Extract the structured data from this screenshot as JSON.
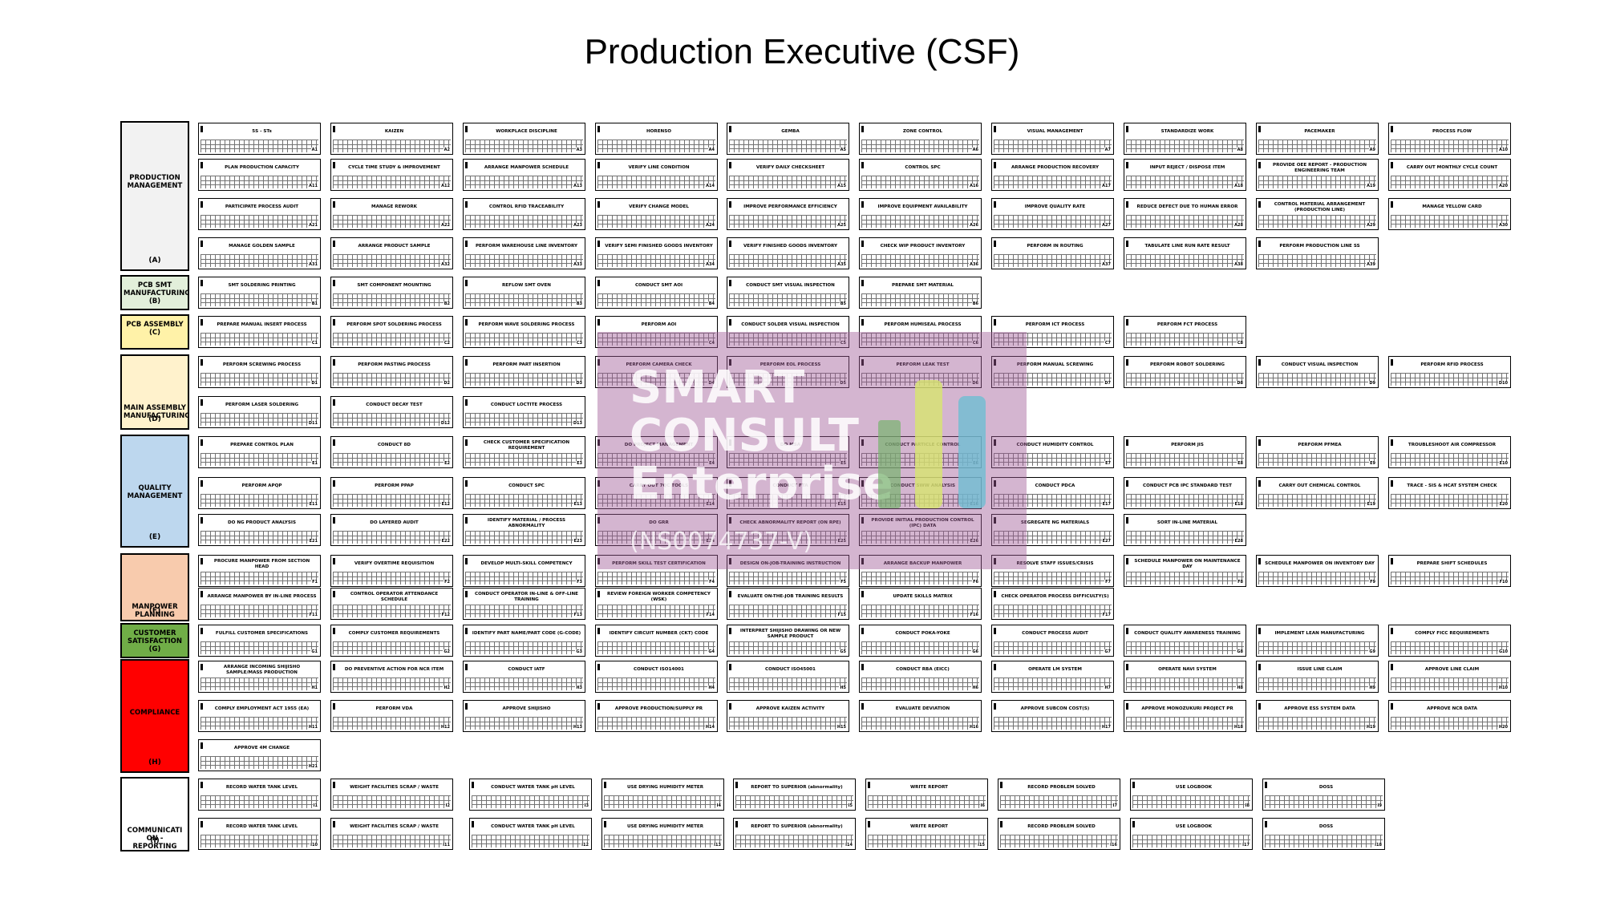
{
  "title": "Production Executive (CSF)",
  "watermark": {
    "text": "SMART\nCONSULT\nEnterprise",
    "subtext": "(NS0074737-V)"
  },
  "colors": {
    "A": "#f2f2f2",
    "B": "#e2efda",
    "C": "#fff2a8",
    "D": "#fff2cc",
    "E": "#bdd7ee",
    "F": "#f8cbad",
    "G": "#70ad47",
    "H": "#ff0000",
    "I": "#ffffff"
  },
  "categories": [
    {
      "key": "A",
      "name": "PRODUCTION\nMANAGEMENT",
      "code": "(A)"
    },
    {
      "key": "B",
      "name": "PCB SMT\nMANUFACTURING\n(B)",
      "code": ""
    },
    {
      "key": "C",
      "name": "PCB ASSEMBLY\n(C)",
      "code": ""
    },
    {
      "key": "D",
      "name": "MAIN ASSEMBLY\nMANUFACTURING",
      "code": "(D)"
    },
    {
      "key": "E",
      "name": "QUALITY\nMANAGEMENT",
      "code": "(E)"
    },
    {
      "key": "F",
      "name": "MANPOWER\nPLANNING",
      "code": "(F)"
    },
    {
      "key": "G",
      "name": "CUSTOMER\nSATISFACTION\n(G)",
      "code": ""
    },
    {
      "key": "H",
      "name": "COMPLIANCE",
      "code": "(H)"
    },
    {
      "key": "I",
      "name": "COMMUNICATI\nON -\nREPORTING",
      "code": "(I)"
    }
  ],
  "rows": [
    {
      "cat": "A",
      "items": [
        [
          "5S - STs",
          "A1"
        ],
        [
          "KAIZEN",
          "A2"
        ],
        [
          "WORKPLACE DISCIPLINE",
          "A3"
        ],
        [
          "HORENSO",
          "A4"
        ],
        [
          "GEMBA",
          "A5"
        ],
        [
          "ZONE CONTROL",
          "A6"
        ],
        [
          "VISUAL MANAGEMENT",
          "A7"
        ],
        [
          "STANDARDIZE WORK",
          "A8"
        ],
        [
          "PACEMAKER",
          "A9"
        ],
        [
          "PROCESS FLOW",
          "A10"
        ]
      ]
    },
    {
      "cat": "A",
      "items": [
        [
          "PLAN PRODUCTION CAPACITY",
          "A11"
        ],
        [
          "CYCLE TIME STUDY & IMPROVEMENT",
          "A12"
        ],
        [
          "ARRANGE MANPOWER SCHEDULE",
          "A13"
        ],
        [
          "VERIFY LINE CONDITION",
          "A14"
        ],
        [
          "VERIFY DAILY CHECKSHEET",
          "A15"
        ],
        [
          "CONTROL SPC",
          "A16"
        ],
        [
          "ARRANGE PRODUCTION RECOVERY",
          "A17"
        ],
        [
          "INPUT REJECT / DISPOSE ITEM",
          "A18"
        ],
        [
          "PROVIDE OEE REPORT - PRODUCTION ENGINEERING TEAM",
          "A19"
        ],
        [
          "CARRY OUT MONTHLY CYCLE COUNT",
          "A20"
        ]
      ]
    },
    {
      "cat": "A",
      "items": [
        [
          "PARTICIPATE PROCESS AUDIT",
          "A21"
        ],
        [
          "MANAGE REWORK",
          "A22"
        ],
        [
          "CONTROL RFID TRACEABILITY",
          "A23"
        ],
        [
          "VERIFY CHANGE MODEL",
          "A24"
        ],
        [
          "IMPROVE PERFORMANCE EFFICIENCY",
          "A25"
        ],
        [
          "IMPROVE EQUIPMENT AVAILABILITY",
          "A26"
        ],
        [
          "IMPROVE QUALITY RATE",
          "A27"
        ],
        [
          "REDUCE DEFECT DUE TO HUMAN ERROR",
          "A28"
        ],
        [
          "CONTROL MATERIAL ARRANGEMENT (PRODUCTION LINE)",
          "A29"
        ],
        [
          "MANAGE YELLOW CARD",
          "A30"
        ]
      ]
    },
    {
      "cat": "A",
      "items": [
        [
          "MANAGE GOLDEN SAMPLE",
          "A31"
        ],
        [
          "ARRANGE PRODUCT SAMPLE",
          "A32"
        ],
        [
          "PERFORM WAREHOUSE LINE INVENTORY",
          "A33"
        ],
        [
          "VERIFY SEMI FINISHED GOODS INVENTORY",
          "A34"
        ],
        [
          "VERIFY FINISHED GOODS INVENTORY",
          "A35"
        ],
        [
          "CHECK WIP PRODUCT INVENTORY",
          "A36"
        ],
        [
          "PERFORM IN ROUTING",
          "A37"
        ],
        [
          "TABULATE LINE RUN RATE RESULT",
          "A38"
        ],
        [
          "PERFORM PRODUCTION LINE SS",
          "A39"
        ]
      ]
    },
    {
      "cat": "B",
      "items": [
        [
          "SMT SOLDERING PRINTING",
          "B1"
        ],
        [
          "SMT COMPONENT MOUNTING",
          "B2"
        ],
        [
          "REFLOW SMT OVEN",
          "B3"
        ],
        [
          "CONDUCT SMT AOI",
          "B4"
        ],
        [
          "CONDUCT SMT VISUAL INSPECTION",
          "B5"
        ],
        [
          "PREPARE SMT MATERIAL",
          "B6"
        ]
      ]
    },
    {
      "cat": "C",
      "items": [
        [
          "PREPARE MANUAL INSERT PROCESS",
          "C1"
        ],
        [
          "PERFORM SPOT SOLDERING PROCESS",
          "C2"
        ],
        [
          "PERFORM WAVE SOLDERING PROCESS",
          "C3"
        ],
        [
          "PERFORM AOI",
          "C4"
        ],
        [
          "CONDUCT SOLDER VISUAL INSPECTION",
          "C5"
        ],
        [
          "PERFORM HUMISEAL PROCESS",
          "C6"
        ],
        [
          "PERFORM ICT PROCESS",
          "C7"
        ],
        [
          "PERFORM FCT PROCESS",
          "C8"
        ]
      ]
    },
    {
      "cat": "D",
      "items": [
        [
          "PERFORM SCREWING PROCESS",
          "D1"
        ],
        [
          "PERFORM PASTING PROCESS",
          "D2"
        ],
        [
          "PERFORM PART INSERTION",
          "D3"
        ],
        [
          "PERFORM CAMERA CHECK",
          "D4"
        ],
        [
          "PERFORM EOL PROCESS",
          "D5"
        ],
        [
          "PERFORM LEAK TEST",
          "D6"
        ],
        [
          "PERFORM MANUAL SCREWING",
          "D7"
        ],
        [
          "PERFORM ROBOT SOLDERING",
          "D8"
        ],
        [
          "CONDUCT VISUAL INSPECTION",
          "D9"
        ],
        [
          "PERFORM RFID PROCESS",
          "D10"
        ]
      ]
    },
    {
      "cat": "D",
      "items": [
        [
          "PERFORM LASER SOLDERING",
          "D11"
        ],
        [
          "CONDUCT DECAY TEST",
          "D12"
        ],
        [
          "CONDUCT LOCTITE PROCESS",
          "D13"
        ]
      ]
    },
    {
      "cat": "E",
      "items": [
        [
          "PREPARE CONTROL PLAN",
          "E1"
        ],
        [
          "CONDUCT 8D",
          "E2"
        ],
        [
          "CHECK CUSTOMER SPECIFICATION REQUIREMENT",
          "E3"
        ],
        [
          "DO PROJECT MANAGEMENT",
          "E4"
        ],
        [
          "DO MSA",
          "E5"
        ],
        [
          "CONDUCT PARTICLE CONTROL",
          "E6"
        ],
        [
          "CONDUCT HUMIDITY CONTROL",
          "E7"
        ],
        [
          "PERFORM JIS",
          "E8"
        ],
        [
          "PERFORM PFMEA",
          "E9"
        ],
        [
          "TROUBLESHOOT AIR COMPRESSOR",
          "E10"
        ]
      ]
    },
    {
      "cat": "E",
      "items": [
        [
          "PERFORM APQP",
          "E11"
        ],
        [
          "PERFORM PPAP",
          "E12"
        ],
        [
          "CONDUCT SPC",
          "E13"
        ],
        [
          "CARRY OUT 7QC TOOLS",
          "E14"
        ],
        [
          "CONDUCT FTA",
          "E15"
        ],
        [
          "CONDUCT SWW ANALYSIS",
          "E16"
        ],
        [
          "CONDUCT PDCA",
          "E17"
        ],
        [
          "CONDUCT PCB IPC STANDARD TEST",
          "E18"
        ],
        [
          "CARRY OUT CHEMICAL CONTROL",
          "E19"
        ],
        [
          "TRACE - SIS & HCAT SYSTEM CHECK",
          "E20"
        ]
      ]
    },
    {
      "cat": "E",
      "items": [
        [
          "DO NG PRODUCT ANALYSIS",
          "E21"
        ],
        [
          "DO LAYERED AUDIT",
          "E22"
        ],
        [
          "IDENTIFY MATERIAL / PROCESS ABNORMALITY",
          "E23"
        ],
        [
          "DO GRR",
          "E24"
        ],
        [
          "CHECK ABNORMALITY REPORT (ON RPE)",
          "E25"
        ],
        [
          "PROVIDE INITIAL PRODUCTION CONTROL (IPC) DATA",
          "E26"
        ],
        [
          "SEGREGATE NG MATERIALS",
          "E27"
        ],
        [
          "SORT IN-LINE MATERIAL",
          "E28"
        ]
      ]
    },
    {
      "cat": "F",
      "items": [
        [
          "PROCURE MANPOWER FROM SECTION HEAD",
          "F1"
        ],
        [
          "VERIFY OVERTIME REQUISITION",
          "F2"
        ],
        [
          "DEVELOP MULTI-SKILL COMPETENCY",
          "F3"
        ],
        [
          "PERFORM SKILL TEST CERTIFICATION",
          "F4"
        ],
        [
          "DESIGN ON-JOB-TRAINING INSTRUCTION",
          "F5"
        ],
        [
          "ARRANGE BACKUP MANPOWER",
          "F6"
        ],
        [
          "RESOLVE STAFF ISSUES/CRISIS",
          "F7"
        ],
        [
          "SCHEDULE MANPOWER ON MAINTENANCE DAY",
          "F8"
        ],
        [
          "SCHEDULE MANPOWER ON INVENTORY DAY",
          "F9"
        ],
        [
          "PREPARE SHIFT SCHEDULES",
          "F10"
        ]
      ]
    },
    {
      "cat": "F",
      "items": [
        [
          "ARRANGE MANPOWER BY IN-LINE PROCESS",
          "F11"
        ],
        [
          "CONTROL OPERATOR ATTENDANCE SCHEDULE",
          "F12"
        ],
        [
          "CONDUCT OPERATOR IN-LINE & OFF-LINE TRAINING",
          "F13"
        ],
        [
          "REVIEW FOREIGN WORKER COMPETENCY (WSK)",
          "F14"
        ],
        [
          "EVALUATE ON-THE-JOB TRAINING RESULTS",
          "F15"
        ],
        [
          "UPDATE SKILLS MATRIX",
          "F16"
        ],
        [
          "CHECK OPERATOR PROCESS DIFFICULTY(S)",
          "F17"
        ]
      ]
    },
    {
      "cat": "G",
      "items": [
        [
          "FULFILL CUSTOMER SPECIFICATIONS",
          "G1"
        ],
        [
          "COMPLY CUSTOMER REQUIREMENTS",
          "G2"
        ],
        [
          "IDENTIFY PART NAME/PART CODE (G-CODE)",
          "G3"
        ],
        [
          "IDENTIFY CIRCUIT NUMBER (CKT) CODE",
          "G4"
        ],
        [
          "INTERPRET SHIJISHO DRAWING OR NEW SAMPLE PRODUCT",
          "G5"
        ],
        [
          "CONDUCT POKA-YOKE",
          "G6"
        ],
        [
          "CONDUCT PROCESS AUDIT",
          "G7"
        ],
        [
          "CONDUCT QUALITY AWARENESS TRAINING",
          "G8"
        ],
        [
          "IMPLEMENT LEAN MANUFACTURING",
          "G9"
        ],
        [
          "COMPLY FICC REQUIREMENTS",
          "G10"
        ]
      ]
    },
    {
      "cat": "H",
      "items": [
        [
          "ARRANGE INCOMING SHIJISHO SAMPLE/MASS PRODUCTION",
          "H1"
        ],
        [
          "DO PREVENTIVE ACTION FOR NCR ITEM",
          "H2"
        ],
        [
          "CONDUCT IATF",
          "H3"
        ],
        [
          "CONDUCT ISO14001",
          "H4"
        ],
        [
          "CONDUCT ISO45001",
          "H5"
        ],
        [
          "CONDUCT RBA (EICC)",
          "H6"
        ],
        [
          "OPERATE LM SYSTEM",
          "H7"
        ],
        [
          "OPERATE NAVI SYSTEM",
          "H8"
        ],
        [
          "ISSUE LINE CLAIM",
          "H9"
        ],
        [
          "APPROVE LINE CLAIM",
          "H10"
        ]
      ]
    },
    {
      "cat": "H",
      "items": [
        [
          "COMPLY EMPLOYMENT ACT 1955 (EA)",
          "H11"
        ],
        [
          "PERFORM VDA",
          "H12"
        ],
        [
          "APPROVE SHIJISHO",
          "H13"
        ],
        [
          "APPROVE PRODUCTION/SUPPLY PR",
          "H14"
        ],
        [
          "APPROVE KAIZEN ACTIVITY",
          "H15"
        ],
        [
          "EVALUATE DEVIATION",
          "H16"
        ],
        [
          "APPROVE SUBCON COST(S)",
          "H17"
        ],
        [
          "APPROVE MONOZUKURI PROJECT PR",
          "H18"
        ],
        [
          "APPROVE ESS SYSTEM DATA",
          "H19"
        ],
        [
          "APPROVE NCR DATA",
          "H20"
        ]
      ]
    },
    {
      "cat": "H",
      "items": [
        [
          "APPROVE 4M CHANGE",
          "H21"
        ]
      ]
    },
    {
      "cat": "I",
      "items": [
        [
          "RECORD WATER TANK LEVEL",
          "I1"
        ],
        [
          "WEIGHT FACILITIES SCRAP / WASTE",
          "I2"
        ],
        [
          "CONDUCT WATER TANK pH LEVEL",
          "I3"
        ],
        [
          "USE DRYING HUMIDITY METER",
          "I4"
        ],
        [
          "REPORT TO SUPERIOR (abnormality)",
          "I5"
        ],
        [
          "WRITE REPORT",
          "I6"
        ],
        [
          "RECORD PROBLEM SOLVED",
          "I7"
        ],
        [
          "USE LOGBOOK",
          "I8"
        ],
        [
          "DOSS",
          "I9"
        ]
      ]
    },
    {
      "cat": "I",
      "items": [
        [
          "RECORD WATER TANK LEVEL",
          "I10"
        ],
        [
          "WEIGHT FACILITIES SCRAP / WASTE",
          "I11"
        ],
        [
          "CONDUCT WATER TANK pH LEVEL",
          "I12"
        ],
        [
          "USE DRYING HUMIDITY METER",
          "I13"
        ],
        [
          "REPORT TO SUPERIOR (abnormality)",
          "I14"
        ],
        [
          "WRITE REPORT",
          "I15"
        ],
        [
          "RECORD PROBLEM SOLVED",
          "I16"
        ],
        [
          "USE LOGBOOK",
          "I17"
        ],
        [
          "DOSS",
          "I18"
        ]
      ]
    }
  ]
}
